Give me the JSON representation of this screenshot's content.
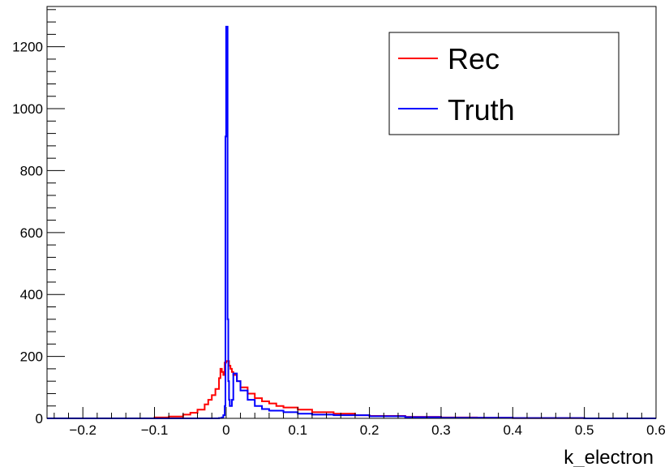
{
  "chart_data": {
    "type": "line",
    "title": "",
    "xlabel": "k_electron",
    "ylabel": "",
    "xlim": [
      -0.25,
      0.6
    ],
    "ylim": [
      0,
      1330
    ],
    "xticks": [
      -0.2,
      -0.1,
      0,
      0.1,
      0.2,
      0.3,
      0.4,
      0.5,
      0.6
    ],
    "xtick_labels": [
      "−0.2",
      "−0.1",
      "0",
      "0.1",
      "0.2",
      "0.3",
      "0.4",
      "0.5",
      "0.6"
    ],
    "yticks": [
      0,
      200,
      400,
      600,
      800,
      1000,
      1200
    ],
    "ytick_labels": [
      "0",
      "200",
      "400",
      "600",
      "800",
      "1000",
      "1200"
    ],
    "grid": false,
    "legend_position": "top-right",
    "series": [
      {
        "name": "Rec",
        "color": "#ff0000",
        "style": "step",
        "x": [
          -0.25,
          -0.2,
          -0.15,
          -0.1,
          -0.08,
          -0.06,
          -0.05,
          -0.04,
          -0.03,
          -0.025,
          -0.02,
          -0.015,
          -0.01,
          -0.008,
          -0.006,
          -0.004,
          -0.002,
          0,
          0.002,
          0.004,
          0.006,
          0.008,
          0.01,
          0.015,
          0.02,
          0.03,
          0.04,
          0.05,
          0.06,
          0.07,
          0.08,
          0.1,
          0.12,
          0.15,
          0.18,
          0.2,
          0.25,
          0.3,
          0.35,
          0.4,
          0.5,
          0.6
        ],
        "y": [
          0,
          0,
          0,
          3,
          6,
          12,
          18,
          28,
          45,
          60,
          75,
          95,
          130,
          160,
          150,
          140,
          180,
          185,
          185,
          170,
          160,
          150,
          140,
          120,
          100,
          80,
          65,
          55,
          48,
          40,
          35,
          28,
          20,
          15,
          10,
          8,
          5,
          3,
          2,
          1,
          0,
          0
        ]
      },
      {
        "name": "Truth",
        "color": "#0000ff",
        "style": "step",
        "x": [
          -0.25,
          -0.1,
          -0.05,
          -0.02,
          -0.01,
          -0.006,
          -0.004,
          -0.002,
          -0.001,
          0,
          0.001,
          0.002,
          0.003,
          0.004,
          0.005,
          0.006,
          0.008,
          0.01,
          0.015,
          0.02,
          0.03,
          0.04,
          0.05,
          0.06,
          0.08,
          0.1,
          0.12,
          0.15,
          0.2,
          0.25,
          0.3,
          0.4,
          0.5,
          0.6
        ],
        "y": [
          0,
          0,
          0,
          0,
          1,
          3,
          10,
          40,
          910,
          1265,
          1265,
          320,
          120,
          60,
          40,
          40,
          60,
          145,
          120,
          90,
          60,
          40,
          30,
          25,
          20,
          15,
          12,
          10,
          7,
          4,
          2,
          1,
          0,
          0
        ]
      }
    ]
  }
}
